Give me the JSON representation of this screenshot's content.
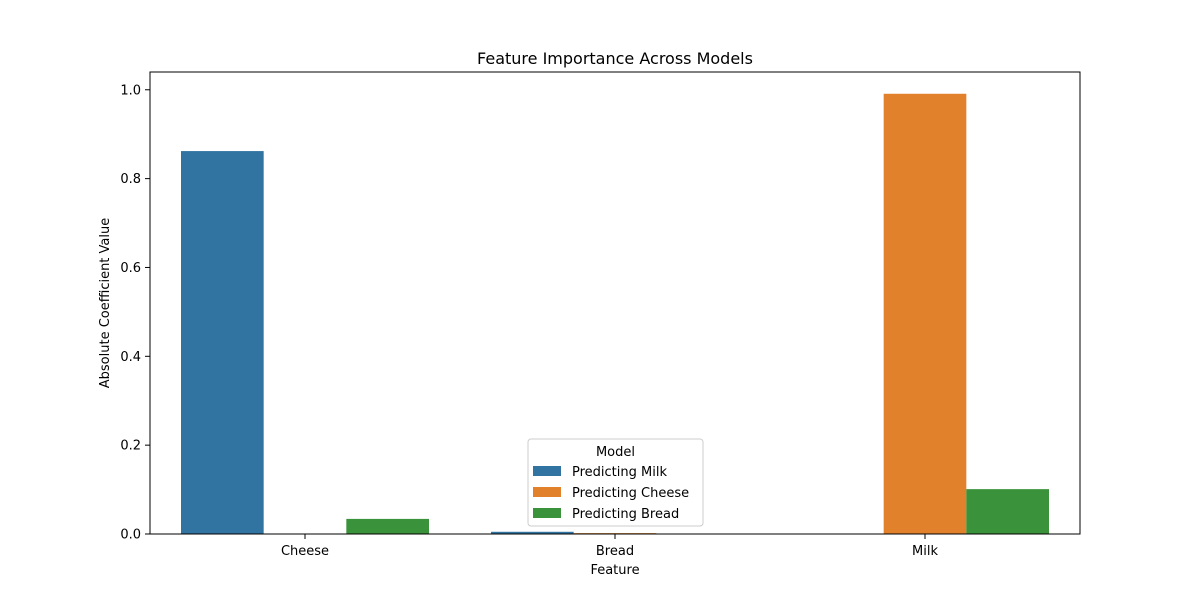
{
  "chart_data": {
    "type": "bar",
    "title": "Feature Importance Across Models",
    "xlabel": "Feature",
    "ylabel": "Absolute Coefficient Value",
    "categories": [
      "Cheese",
      "Bread",
      "Milk"
    ],
    "ylim": [
      0,
      1.04
    ],
    "yticks": [
      0.0,
      0.2,
      0.4,
      0.6,
      0.8,
      1.0
    ],
    "ytick_labels": [
      "0.0",
      "0.2",
      "0.4",
      "0.6",
      "0.8",
      "1.0"
    ],
    "grid": false,
    "legend": {
      "title": "Model",
      "position": "lower-center"
    },
    "series": [
      {
        "name": "Predicting Milk",
        "color": "#3274a1",
        "values": [
          0.862,
          0.005,
          0.0
        ]
      },
      {
        "name": "Predicting Cheese",
        "color": "#e1812c",
        "values": [
          0.0,
          0.002,
          0.991
        ]
      },
      {
        "name": "Predicting Bread",
        "color": "#3a923a",
        "values": [
          0.034,
          0.0,
          0.101
        ]
      }
    ]
  }
}
